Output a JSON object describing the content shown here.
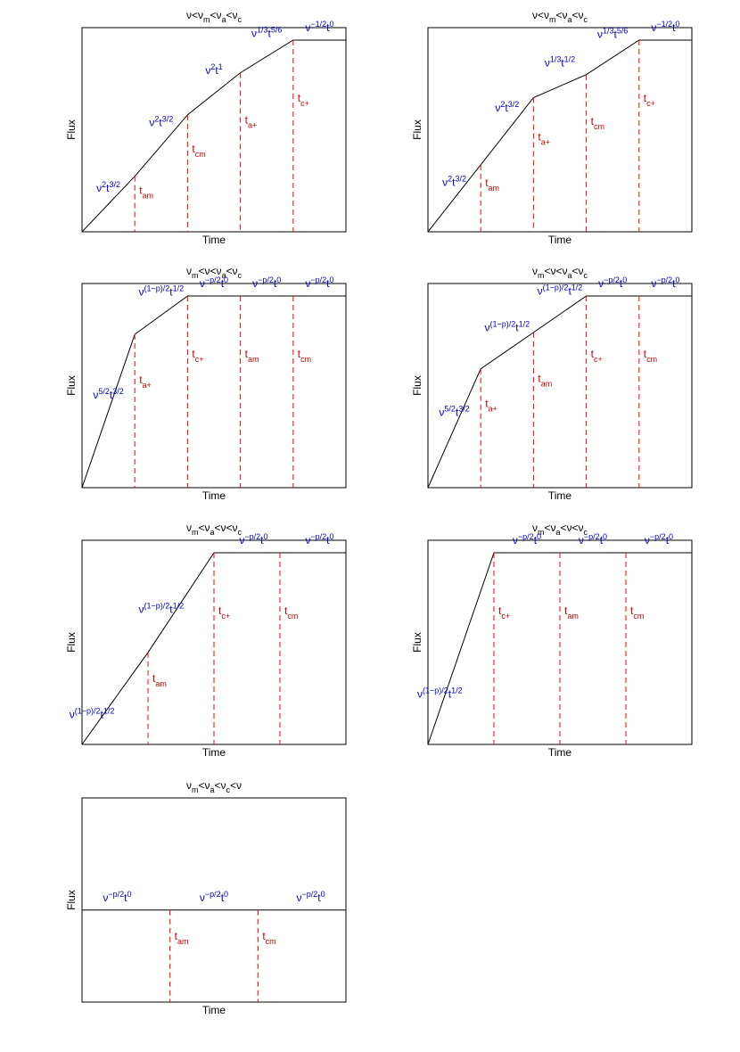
{
  "axis_labels": {
    "x": "Time",
    "y": "Flux"
  },
  "colors": {
    "curve": "#000000",
    "marker_line": "#ff0000",
    "marker_text": "#cc0000",
    "segment_text": "#0000c8"
  },
  "chart_data": [
    {
      "type": "line",
      "title": {
        "b1": "ν<ν",
        "s1": "m",
        "b2": "<ν",
        "s2": "a",
        "b3": "<ν",
        "s3": "c"
      },
      "xlabel": "Time",
      "ylabel": "Flux",
      "xlim": [
        0,
        5
      ],
      "ylim": [
        0,
        1
      ],
      "x": [
        0,
        1,
        2,
        3,
        4,
        5
      ],
      "y": [
        0,
        0.29,
        0.61,
        0.83,
        1.0,
        1.0
      ],
      "markers": [
        {
          "x": 1,
          "label": "t",
          "sub": "am"
        },
        {
          "x": 2,
          "label": "t",
          "sub": "cm"
        },
        {
          "x": 3,
          "label": "t",
          "sub": "a+"
        },
        {
          "x": 4,
          "label": "t",
          "sub": "c+"
        }
      ],
      "segments": [
        {
          "x": 0.5,
          "level": "low",
          "b": "ν",
          "e1": "2",
          "m": "t",
          "e2": "3/2"
        },
        {
          "x": 1.5,
          "level": "high",
          "b": "ν",
          "e1": "2",
          "m": "t",
          "e2": "3/2"
        },
        {
          "x": 2.5,
          "level": "high",
          "b": "ν",
          "e1": "2",
          "m": "t",
          "e2": "1"
        },
        {
          "x": 3.5,
          "level": "high",
          "b": "ν",
          "e1": "1/3",
          "m": "t",
          "e2": "5/6"
        },
        {
          "x": 4.5,
          "level": "top",
          "b": "ν",
          "e1": "−1/2",
          "m": "t",
          "e2": "0"
        }
      ]
    },
    {
      "type": "line",
      "title": {
        "b1": "ν<ν",
        "s1": "m",
        "b2": "<ν",
        "s2": "a",
        "b3": "<ν",
        "s3": "c"
      },
      "xlabel": "Time",
      "ylabel": "Flux",
      "xlim": [
        0,
        5
      ],
      "ylim": [
        0,
        1
      ],
      "x": [
        0,
        1,
        2,
        3,
        4,
        5
      ],
      "y": [
        0,
        0.35,
        0.7,
        0.82,
        1.0,
        1.0
      ],
      "markers": [
        {
          "x": 1,
          "label": "t",
          "sub": "am"
        },
        {
          "x": 2,
          "label": "t",
          "sub": "a+"
        },
        {
          "x": 3,
          "label": "t",
          "sub": "cm"
        },
        {
          "x": 4,
          "label": "t",
          "sub": "c+"
        }
      ],
      "segments": [
        {
          "x": 0.5,
          "level": "low",
          "b": "ν",
          "e1": "2",
          "m": "t",
          "e2": "3/2"
        },
        {
          "x": 1.5,
          "level": "high",
          "b": "ν",
          "e1": "2",
          "m": "t",
          "e2": "3/2"
        },
        {
          "x": 2.5,
          "level": "high",
          "b": "ν",
          "e1": "1/3",
          "m": "t",
          "e2": "1/2"
        },
        {
          "x": 3.5,
          "level": "high",
          "b": "ν",
          "e1": "1/3",
          "m": "t",
          "e2": "5/6"
        },
        {
          "x": 4.5,
          "level": "top",
          "b": "ν",
          "e1": "−1/2",
          "m": "t",
          "e2": "0"
        }
      ]
    },
    {
      "type": "line",
      "title": {
        "b1": "ν",
        "s1": "m",
        "b2": "<ν<ν",
        "s2": "a",
        "b3": "<ν",
        "s3": "c"
      },
      "xlabel": "Time",
      "ylabel": "Flux",
      "xlim": [
        0,
        5
      ],
      "ylim": [
        0,
        1
      ],
      "x": [
        0,
        1,
        2,
        3,
        4,
        5
      ],
      "y": [
        0,
        0.8,
        1.0,
        1.0,
        1.0,
        1.0
      ],
      "markers": [
        {
          "x": 1,
          "label": "t",
          "sub": "a+"
        },
        {
          "x": 2,
          "label": "t",
          "sub": "c+"
        },
        {
          "x": 3,
          "label": "t",
          "sub": "am"
        },
        {
          "x": 4,
          "label": "t",
          "sub": "cm"
        }
      ],
      "segments": [
        {
          "x": 0.5,
          "level": "low",
          "b": "ν",
          "e1": "5/2",
          "m": "t",
          "e2": "3/2"
        },
        {
          "x": 1.5,
          "level": "high",
          "b": "ν",
          "e1": "(1−p)/2",
          "m": "t",
          "e2": "1/2"
        },
        {
          "x": 2.5,
          "level": "top",
          "b": "ν",
          "e1": "−p/2",
          "m": "t",
          "e2": "0"
        },
        {
          "x": 3.5,
          "level": "top",
          "b": "ν",
          "e1": "−p/2",
          "m": "t",
          "e2": "0"
        },
        {
          "x": 4.5,
          "level": "top",
          "b": "ν",
          "e1": "−p/2",
          "m": "t",
          "e2": "0"
        }
      ]
    },
    {
      "type": "line",
      "title": {
        "b1": "ν",
        "s1": "m",
        "b2": "<ν<ν",
        "s2": "a",
        "b3": "<ν",
        "s3": "c"
      },
      "xlabel": "Time",
      "ylabel": "Flux",
      "xlim": [
        0,
        5
      ],
      "ylim": [
        0,
        1
      ],
      "x": [
        0,
        1,
        2,
        3,
        4,
        5
      ],
      "y": [
        0,
        0.62,
        0.81,
        1.0,
        1.0,
        1.0
      ],
      "markers": [
        {
          "x": 1,
          "label": "t",
          "sub": "a+"
        },
        {
          "x": 2,
          "label": "t",
          "sub": "am"
        },
        {
          "x": 3,
          "label": "t",
          "sub": "c+"
        },
        {
          "x": 4,
          "label": "t",
          "sub": "cm"
        }
      ],
      "segments": [
        {
          "x": 0.5,
          "level": "low",
          "b": "ν",
          "e1": "5/2",
          "m": "t",
          "e2": "3/2"
        },
        {
          "x": 1.5,
          "level": "high",
          "b": "ν",
          "e1": "(1−p)/2",
          "m": "t",
          "e2": "1/2"
        },
        {
          "x": 2.5,
          "level": "high",
          "b": "ν",
          "e1": "(1−p)/2",
          "m": "t",
          "e2": "1/2"
        },
        {
          "x": 3.5,
          "level": "top",
          "b": "ν",
          "e1": "−p/2",
          "m": "t",
          "e2": "0"
        },
        {
          "x": 4.5,
          "level": "top",
          "b": "ν",
          "e1": "−p/2",
          "m": "t",
          "e2": "0"
        }
      ]
    },
    {
      "type": "line",
      "title": {
        "b1": "ν",
        "s1": "m",
        "b2": "<ν",
        "s2": "a",
        "b3": "<ν<ν",
        "s3": "c"
      },
      "xlabel": "Time",
      "ylabel": "Flux",
      "xlim": [
        0,
        4
      ],
      "ylim": [
        0,
        1
      ],
      "x": [
        0,
        1,
        2,
        3,
        4
      ],
      "y": [
        0,
        0.48,
        1.0,
        1.0,
        1.0
      ],
      "markers": [
        {
          "x": 1,
          "label": "t",
          "sub": "am"
        },
        {
          "x": 2,
          "label": "t",
          "sub": "c+"
        },
        {
          "x": 3,
          "label": "t",
          "sub": "cm"
        }
      ],
      "segments": [
        {
          "x": 0.15,
          "level": "low",
          "b": "ν",
          "e1": "(1−p)/2",
          "m": "t",
          "e2": "1/2"
        },
        {
          "x": 1.2,
          "level": "high",
          "b": "ν",
          "e1": "(1−p)/2",
          "m": "t",
          "e2": "1/2"
        },
        {
          "x": 2.6,
          "level": "top",
          "b": "ν",
          "e1": "−p/2",
          "m": "t",
          "e2": "0"
        },
        {
          "x": 3.6,
          "level": "top",
          "b": "ν",
          "e1": "−p/2",
          "m": "t",
          "e2": "0"
        }
      ]
    },
    {
      "type": "line",
      "title": {
        "b1": "ν",
        "s1": "m",
        "b2": "<ν",
        "s2": "a",
        "b3": "<ν<ν",
        "s3": "c"
      },
      "xlabel": "Time",
      "ylabel": "Flux",
      "xlim": [
        0,
        4
      ],
      "ylim": [
        0,
        1
      ],
      "x": [
        0,
        1,
        2,
        3,
        4
      ],
      "y": [
        0,
        1.0,
        1.0,
        1.0,
        1.0
      ],
      "markers": [
        {
          "x": 1,
          "label": "t",
          "sub": "c+"
        },
        {
          "x": 2,
          "label": "t",
          "sub": "am"
        },
        {
          "x": 3,
          "label": "t",
          "sub": "cm"
        }
      ],
      "segments": [
        {
          "x": 0.18,
          "level": "low",
          "b": "ν",
          "e1": "(1−p)/2",
          "m": "t",
          "e2": "1/2"
        },
        {
          "x": 1.5,
          "level": "top",
          "b": "ν",
          "e1": "−p/2",
          "m": "t",
          "e2": "0"
        },
        {
          "x": 2.5,
          "level": "top",
          "b": "ν",
          "e1": "−p/2",
          "m": "t",
          "e2": "0"
        },
        {
          "x": 3.5,
          "level": "top",
          "b": "ν",
          "e1": "−p/2",
          "m": "t",
          "e2": "0"
        }
      ]
    },
    {
      "type": "line",
      "title": {
        "b1": "ν",
        "s1": "m",
        "b2": "<ν",
        "s2": "a",
        "b3": "<ν",
        "s3": "c",
        "b4": "<ν"
      },
      "xlabel": "Time",
      "ylabel": "Flux",
      "xlim": [
        0,
        3
      ],
      "ylim": [
        0,
        1
      ],
      "x": [
        0,
        1,
        2,
        3
      ],
      "y": [
        0.48,
        0.48,
        0.48,
        0.48
      ],
      "markers": [
        {
          "x": 1,
          "label": "t",
          "sub": "am"
        },
        {
          "x": 2,
          "label": "t",
          "sub": "cm"
        }
      ],
      "segments": [
        {
          "x": 0.4,
          "level": "top",
          "b": "ν",
          "e1": "−p/2",
          "m": "t",
          "e2": "0"
        },
        {
          "x": 1.5,
          "level": "top",
          "b": "ν",
          "e1": "−p/2",
          "m": "t",
          "e2": "0"
        },
        {
          "x": 2.6,
          "level": "top",
          "b": "ν",
          "e1": "−p/2",
          "m": "t",
          "e2": "0"
        }
      ]
    }
  ]
}
